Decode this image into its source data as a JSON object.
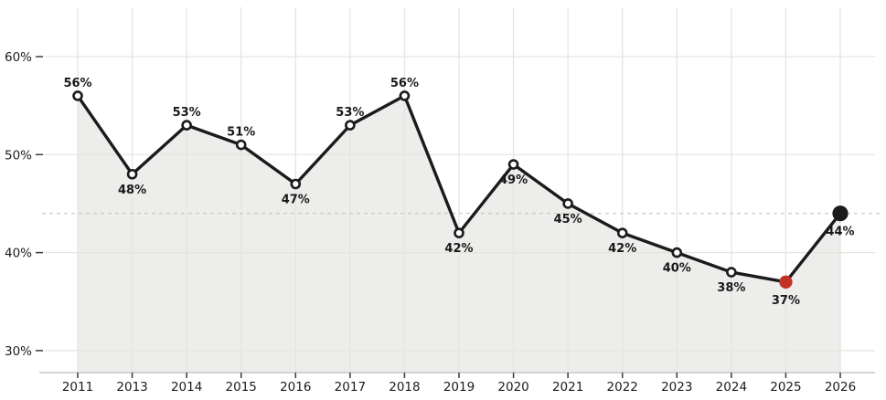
{
  "chart_data": {
    "type": "area",
    "title": "",
    "xlabel": "",
    "ylabel": "",
    "x": [
      "2011",
      "2013",
      "2014",
      "2015",
      "2016",
      "2017",
      "2018",
      "2019",
      "2020",
      "2021",
      "2022",
      "2023",
      "2024",
      "2025",
      "2026"
    ],
    "series": [
      {
        "name": "share-percentage",
        "values": [
          56,
          48,
          53,
          51,
          47,
          53,
          56,
          42,
          49,
          45,
          42,
          40,
          38,
          37,
          44
        ]
      }
    ],
    "point_labels": [
      "56%",
      "48%",
      "53%",
      "51%",
      "47%",
      "53%",
      "56%",
      "42%",
      "49%",
      "45%",
      "42%",
      "40%",
      "38%",
      "37%",
      "44%"
    ],
    "label_positions": [
      "above",
      "below",
      "above",
      "above",
      "below",
      "above",
      "above",
      "below",
      "below",
      "below",
      "below",
      "below",
      "below",
      "below",
      "below"
    ],
    "marker_styles": [
      "open",
      "open",
      "open",
      "open",
      "open",
      "open",
      "open",
      "open",
      "open",
      "open",
      "open",
      "open",
      "open",
      "highlight-red",
      "final-black"
    ],
    "y_ticks": [
      {
        "value": 30,
        "label": "30%"
      },
      {
        "value": 40,
        "label": "40%"
      },
      {
        "value": 50,
        "label": "50%"
      },
      {
        "value": 60,
        "label": "60%"
      }
    ],
    "ylim": [
      27.5,
      65
    ],
    "grid": true,
    "legend": false,
    "reference_line": {
      "value": 44,
      "style": "dashed"
    },
    "colors": {
      "line": "#1b1b1b",
      "area_fill": "#ededec",
      "grid": "#e6e4e0",
      "dashed_reference": "#c7c5c1",
      "axis_line": "#cac8c5",
      "tick_mark": "#3c3c3c",
      "tick_label": "#1c1c1c",
      "point_label": "#191919",
      "marker_open_fill": "#ffffff",
      "marker_open_stroke": "#1b1b1b",
      "marker_highlight_red": "#c23327",
      "marker_final_black": "#1b1b1b"
    }
  }
}
